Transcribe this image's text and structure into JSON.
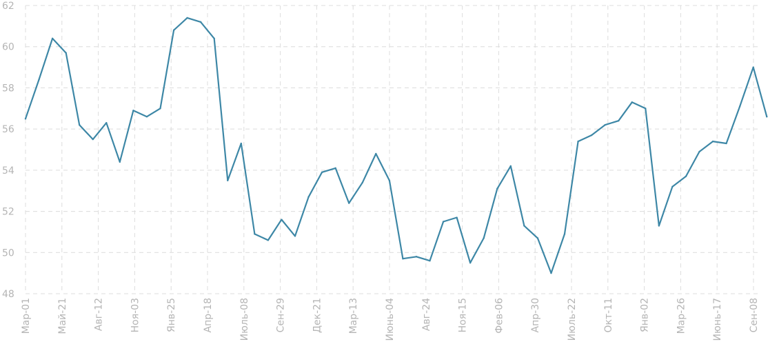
{
  "chart_data": {
    "type": "line",
    "title": "",
    "xlabel": "",
    "ylabel": "",
    "ylim": [
      48,
      62
    ],
    "yticks": [
      "48",
      "50",
      "52",
      "54",
      "56",
      "58",
      "60",
      "62"
    ],
    "grid": true,
    "legend": "none",
    "line_color": "#3d87a6",
    "x_tick_labels": [
      "Мар-01",
      "Май-21",
      "Авг-12",
      "Ноя-03",
      "Янв-25",
      "Апр-18",
      "Июль-08",
      "Сен-29",
      "Дек-21",
      "Мар-13",
      "Июнь-04",
      "Авг-24",
      "Ноя-15",
      "Фев-06",
      "Апр-30",
      "Июль-22",
      "Окт-11",
      "Янв-02",
      "Мар-26",
      "Июнь-17",
      "Сен-08"
    ],
    "series": [
      {
        "values": [
          56.5,
          58.4,
          60.4,
          59.7,
          56.2,
          55.5,
          56.3,
          54.4,
          56.9,
          56.6,
          57.0,
          60.8,
          61.4,
          61.2,
          60.4,
          53.5,
          55.3,
          50.9,
          50.6,
          51.6,
          50.8,
          52.7,
          53.9,
          54.1,
          52.4,
          53.4,
          54.8,
          53.5,
          49.7,
          49.8,
          49.6,
          51.5,
          51.7,
          49.5,
          50.7,
          53.1,
          54.2,
          51.3,
          50.7,
          49.0,
          50.9,
          55.4,
          55.7,
          56.2,
          56.4,
          57.3,
          57.0,
          51.3,
          53.2,
          53.7,
          54.9,
          55.4,
          55.3,
          57.1,
          59.0,
          56.6
        ]
      }
    ]
  }
}
